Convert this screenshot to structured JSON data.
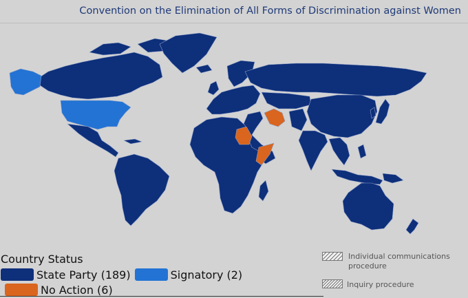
{
  "header": {
    "title": "Convention on the Elimination of All Forms of Discrimination against Women"
  },
  "colors": {
    "background": "#d3d3d3",
    "state_party": "#0e2f7a",
    "signatory": "#2273d4",
    "no_action": "#d9651e",
    "border": "#8da0c8"
  },
  "legend": {
    "title": "Country Status",
    "items": [
      {
        "label": "State Party (189)",
        "color": "#0e2f7a"
      },
      {
        "label": "Signatory (2)",
        "color": "#2273d4"
      },
      {
        "label": "No Action (6)",
        "color": "#d9651e"
      }
    ],
    "procedures": [
      {
        "label": "Individual communications procedure",
        "icon": "hatch-light-icon"
      },
      {
        "label": "Inquiry procedure",
        "icon": "hatch-dense-icon"
      }
    ]
  }
}
